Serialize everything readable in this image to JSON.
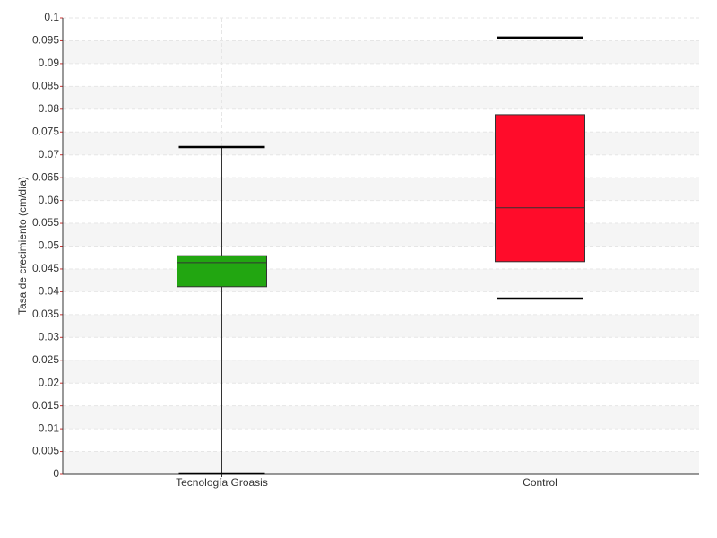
{
  "chart_data": {
    "type": "box",
    "ylabel": "Tasa de crecimiento (cm/día)",
    "categories": [
      "Tecnología Groasis",
      "Control"
    ],
    "boxes": [
      {
        "min": 0.0002,
        "q1": 0.0411,
        "median": 0.0464,
        "q3": 0.0479,
        "max": 0.0717
      },
      {
        "min": 0.0385,
        "q1": 0.0466,
        "median": 0.0584,
        "q3": 0.0788,
        "max": 0.0957
      }
    ],
    "colors": [
      "#22a611",
      "#ff0c2a"
    ],
    "ylim": [
      0,
      0.1
    ],
    "yticks": [
      0,
      0.005,
      0.01,
      0.015,
      0.02,
      0.025,
      0.03,
      0.035,
      0.04,
      0.045,
      0.05,
      0.055,
      0.06,
      0.065,
      0.07,
      0.075,
      0.08,
      0.085,
      0.09,
      0.095,
      0.1
    ],
    "grid": true
  }
}
